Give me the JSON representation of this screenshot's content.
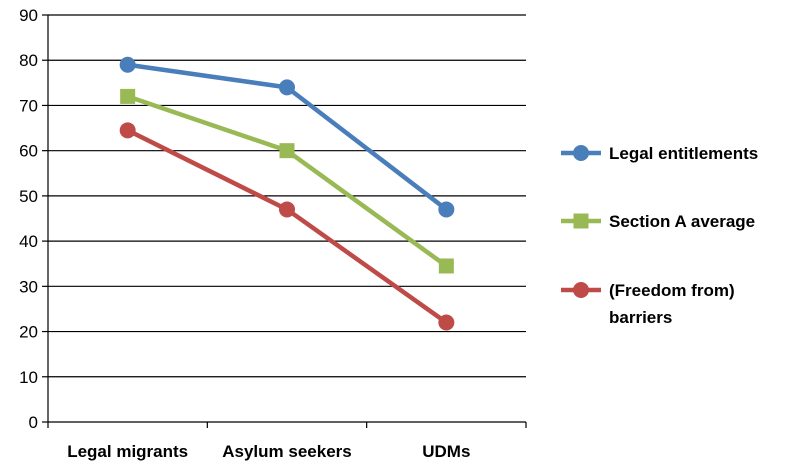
{
  "chart_data": {
    "type": "line",
    "categories": [
      "Legal migrants",
      "Asylum seekers",
      "UDMs"
    ],
    "ylim": [
      0,
      90
    ],
    "yticks": [
      0,
      10,
      20,
      30,
      40,
      50,
      60,
      70,
      80,
      90
    ],
    "grid": true,
    "legend_position": "right",
    "series": [
      {
        "name": "Legal entitlements",
        "legend_lines": [
          "Legal entitlements"
        ],
        "values": [
          79,
          74,
          47
        ],
        "color": "#4a7ebb",
        "marker": "circle"
      },
      {
        "name": "Section A average",
        "legend_lines": [
          "Section A average"
        ],
        "values": [
          72,
          60,
          34.5
        ],
        "color": "#98b954",
        "marker": "square"
      },
      {
        "name": "(Freedom from) barriers",
        "legend_lines": [
          "(Freedom from)",
          "barriers"
        ],
        "values": [
          64.5,
          47,
          22
        ],
        "color": "#be4b48",
        "marker": "circle"
      }
    ]
  }
}
